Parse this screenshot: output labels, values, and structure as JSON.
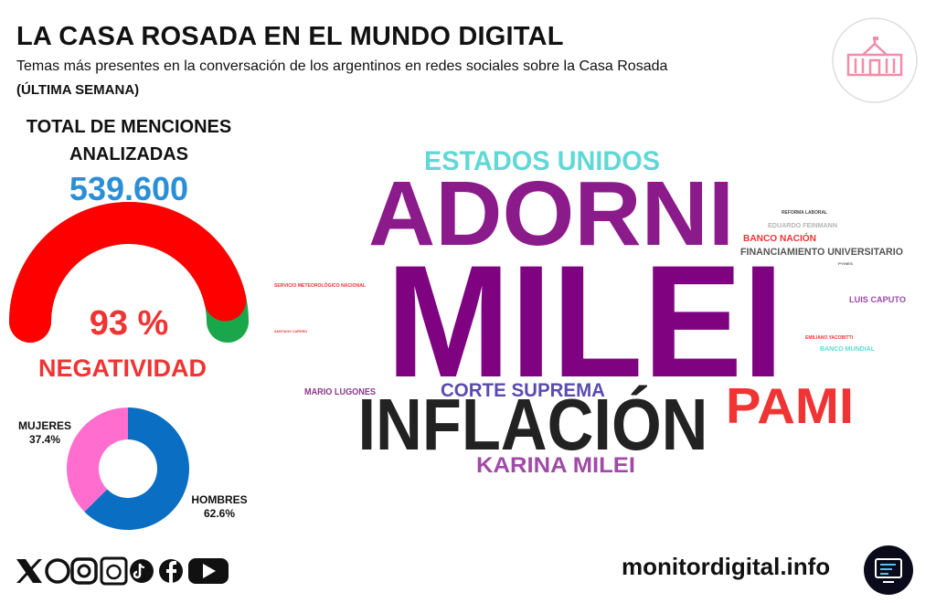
{
  "header": {
    "title": "LA CASA ROSADA EN EL MUNDO DIGITAL",
    "subtitle": "Temas más presentes en la conversación de los argentinos en redes sociales sobre la Casa Rosada",
    "period": "(ÚLTIMA SEMANA)"
  },
  "total": {
    "label": "TOTAL DE MENCIONES ANALIZADAS",
    "value": "539.600"
  },
  "chart_data": [
    {
      "type": "gauge",
      "values": [
        93
      ],
      "value_labels": [
        "93 %"
      ],
      "label": "NEGATIVIDAD",
      "ylim": [
        0,
        100
      ],
      "color": "#ff0000",
      "rest_color": "#1aa64a"
    },
    {
      "type": "pie",
      "categories": [
        "MUJERES",
        "HOMBRES"
      ],
      "values": [
        37.4,
        62.6
      ],
      "value_labels": [
        "37.4%",
        "62.6%"
      ],
      "colors": [
        "#ff6ecf",
        "#0a6fc2"
      ]
    }
  ],
  "wordcloud": {
    "words": [
      {
        "text": "ESTADOS UNIDOS",
        "color": "#5fd8d6"
      },
      {
        "text": "ADORNI",
        "color": "#8b1a8b"
      },
      {
        "text": "MILEI",
        "color": "#7f0380"
      },
      {
        "text": "INFLACIÓN",
        "color": "#222222"
      },
      {
        "text": "PAMI",
        "color": "#f03333"
      },
      {
        "text": "CORTE SUPREMA",
        "color": "#5a4bb0"
      },
      {
        "text": "KARINA MILEI",
        "color": "#a04aa8"
      },
      {
        "text": "MARIO LUGONES",
        "color": "#8a3a8a"
      },
      {
        "text": "LUIS CAPUTO",
        "color": "#9a4aa8"
      },
      {
        "text": "BANCO NACIÓN",
        "color": "#f03333"
      },
      {
        "text": "FINANCIAMIENTO UNIVERSITARIO",
        "color": "#555555"
      },
      {
        "text": "EDUARDO FEINMANN",
        "color": "#b5b5b5"
      },
      {
        "text": "REFORMA LABORAL",
        "color": "#444444"
      },
      {
        "text": "PYMES",
        "color": "#666666"
      },
      {
        "text": "SERVICIO METEOROLÓGICO NACIONAL",
        "color": "#f03333"
      },
      {
        "text": "SANTIAGO CAFIERO",
        "color": "#f03333"
      },
      {
        "text": "EMILIANO YACOBITTI",
        "color": "#f03333"
      },
      {
        "text": "BANCO MUNDIAL",
        "color": "#5fd8d6"
      }
    ]
  },
  "footer": {
    "site": "monitordigital.info"
  }
}
